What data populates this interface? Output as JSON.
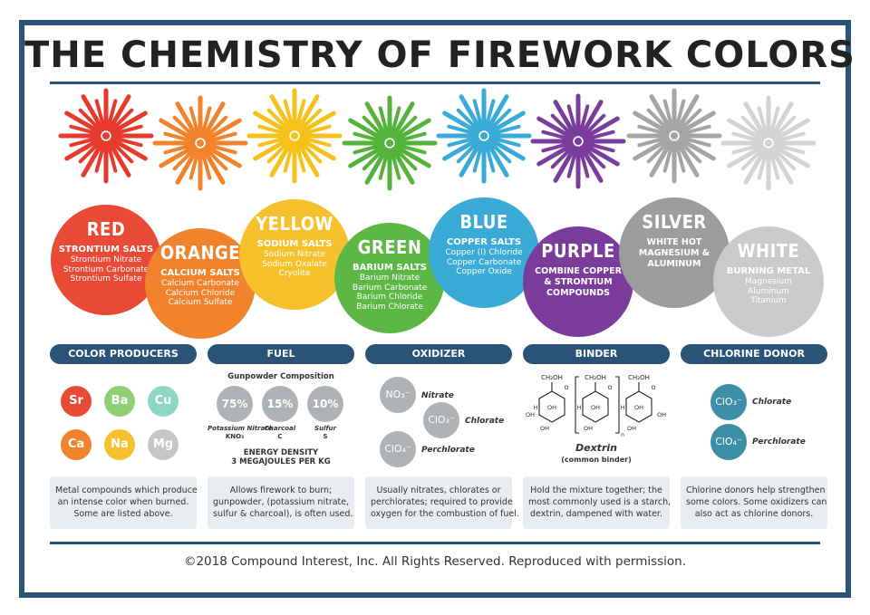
{
  "title": "THE CHEMISTRY OF FIREWORK COLORS",
  "colors": [
    {
      "name": "RED",
      "heading": "STRONTIUM SALTS",
      "lines": [
        "Strontium Nitrate",
        "Strontium Carbonate",
        "Strontium Sulfate"
      ],
      "color": "#e94a35",
      "burst": "#e63a2c"
    },
    {
      "name": "ORANGE",
      "heading": "CALCIUM SALTS",
      "lines": [
        "Calcium Carbonate",
        "Calcium Chloride",
        "Calcium Sulfate"
      ],
      "color": "#f2832d",
      "burst": "#f2832d"
    },
    {
      "name": "YELLOW",
      "heading": "SODIUM SALTS",
      "lines": [
        "Sodium Nitrate",
        "Sodium Oxalate",
        "Cryolite"
      ],
      "color": "#f6c12c",
      "burst": "#f5c21b"
    },
    {
      "name": "GREEN",
      "heading": "BARIUM SALTS",
      "lines": [
        "Barium Nitrate",
        "Barium Carbonate",
        "Barium Chloride",
        "Barium Chlorate"
      ],
      "color": "#5db745",
      "burst": "#55b33b"
    },
    {
      "name": "BLUE",
      "heading": "COPPER SALTS",
      "lines": [
        "Copper (I) Chloride",
        "Copper Carbonate",
        "Copper Oxide"
      ],
      "color": "#3aaad6",
      "burst": "#3aaad6"
    },
    {
      "name": "PURPLE",
      "heading": "COMBINE COPPER & STRONTIUM COMPOUNDS",
      "lines": [],
      "color": "#7a3d9c",
      "burst": "#7a3d9c"
    },
    {
      "name": "SILVER",
      "heading": "WHITE HOT MAGNESIUM & ALUMINUM",
      "lines": [],
      "color": "#9a9c9e",
      "burst": "#a3a5a7"
    },
    {
      "name": "WHITE",
      "heading": "BURNING METAL",
      "lines": [
        "Magnesium",
        "Aluminum",
        "Titanium"
      ],
      "color": "#c9cacb",
      "burst": "#d2d3d4"
    }
  ],
  "sections": {
    "color_producers": {
      "label": "COLOR PRODUCERS",
      "elements": [
        {
          "symbol": "Sr",
          "color": "#e94a35"
        },
        {
          "symbol": "Ba",
          "color": "#8fd077"
        },
        {
          "symbol": "Cu",
          "color": "#8fd6c4"
        },
        {
          "symbol": "Ca",
          "color": "#f2832d"
        },
        {
          "symbol": "Na",
          "color": "#f6c12c"
        },
        {
          "symbol": "Mg",
          "color": "#c4c5c6"
        }
      ],
      "desc": [
        "Metal compounds which produce",
        "an intense color when burned.",
        "Some are listed above."
      ]
    },
    "fuel": {
      "label": "FUEL",
      "subtitle": "Gunpowder Composition",
      "parts": [
        {
          "pct": "75%",
          "name": "Potassium Nitrate",
          "formula": "KNO₃"
        },
        {
          "pct": "15%",
          "name": "Charcoal",
          "formula": "C"
        },
        {
          "pct": "10%",
          "name": "Sulfur",
          "formula": "S"
        }
      ],
      "energy_1": "ENERGY DENSITY",
      "energy_2": "3 MEGAJOULES PER KG",
      "desc": [
        "Allows firework to burn;",
        "gunpowder, (potassium nitrate,",
        "sulfur & charcoal), is often used."
      ]
    },
    "oxidizer": {
      "label": "OXIDIZER",
      "items": [
        {
          "formula": "NO₃⁻",
          "name": "Nitrate"
        },
        {
          "formula": "ClO₃⁻",
          "name": "Chlorate"
        },
        {
          "formula": "ClO₄⁻",
          "name": "Perchlorate"
        }
      ],
      "desc": [
        "Usually nitrates, chlorates or",
        "perchlorates; required to provide",
        "oxygen for the combustion of fuel."
      ]
    },
    "binder": {
      "label": "BINDER",
      "name": "Dextrin",
      "note": "(common binder)",
      "group": "CH₂OH",
      "oh": "OH",
      "o": "O",
      "h": "H",
      "n": "n",
      "desc": [
        "Hold the mixture together; the",
        "most commonly used is a starch,",
        "dextrin, dampened with water."
      ]
    },
    "chlorine_donor": {
      "label": "CHLORINE DONOR",
      "items": [
        {
          "formula": "ClO₃⁻",
          "name": "Chlorate"
        },
        {
          "formula": "ClO₄⁻",
          "name": "Perchlorate"
        }
      ],
      "desc": [
        "Chlorine donors help strengthen",
        "some colors. Some oxidizers can",
        "also act as chlorine donors."
      ]
    }
  },
  "footer": "©2018 Compound Interest, Inc. All Rights Reserved. Reproduced with permission."
}
